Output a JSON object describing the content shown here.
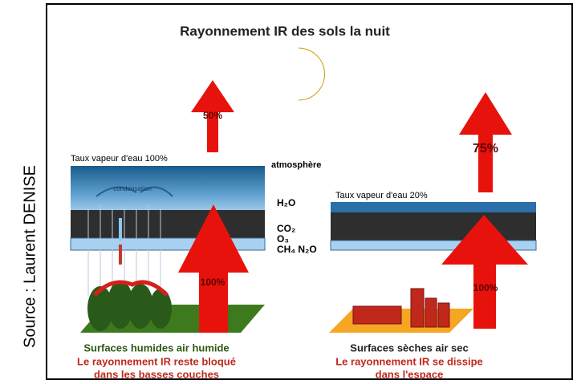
{
  "title": "Rayonnement IR des sols la nuit",
  "source": "Source : Laurent DENISE",
  "left": {
    "humidity": "Taux vapeur d'eau 100%",
    "condensation": "condensation",
    "top_arrow": "50%",
    "ground_arrow": "100%",
    "caption": "Surfaces humides air humide",
    "effect_line1": "Le rayonnement IR reste bloqué",
    "effect_line2": "dans les basses couches"
  },
  "right": {
    "humidity": "Taux vapeur d'eau 20%",
    "top_arrow": "75%",
    "ground_arrow": "100%",
    "caption": "Surfaces sèches air sec",
    "effect_line1": "Le rayonnement IR se dissipe",
    "effect_line2": "dans l'espace"
  },
  "layers": {
    "atmosphere": "atmosphère",
    "h2o": "H₂O",
    "co2": "CO₂",
    "o3": "O₃",
    "other": "CH₄ N₂O"
  }
}
